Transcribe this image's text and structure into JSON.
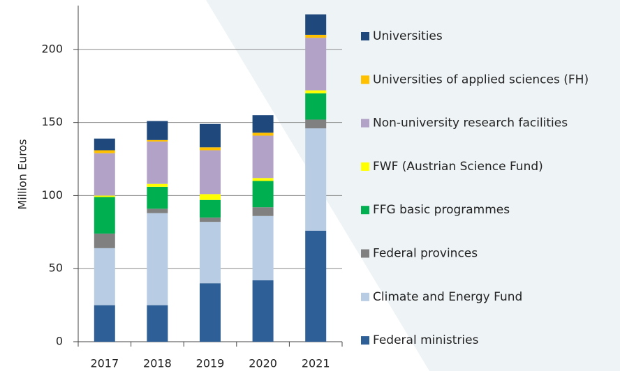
{
  "chart_data": {
    "type": "stacked_bar",
    "ylabel": "Million Euros",
    "categories": [
      "2017",
      "2018",
      "2019",
      "2020",
      "2021"
    ],
    "series": [
      {
        "name": "Federal ministries",
        "color": "#2f5f97",
        "values": [
          25,
          25,
          40,
          42,
          76
        ]
      },
      {
        "name": "Climate and Energy Fund",
        "color": "#b8cce4",
        "values": [
          39,
          63,
          42,
          44,
          70
        ]
      },
      {
        "name": "Federal provinces",
        "color": "#808080",
        "values": [
          10,
          3,
          3,
          6,
          6
        ]
      },
      {
        "name": "FFG basic programmes",
        "color": "#00b050",
        "values": [
          25,
          15,
          12,
          18,
          18
        ]
      },
      {
        "name": "FWF (Austrian Science Fund)",
        "color": "#ffff00",
        "values": [
          1,
          2,
          4,
          2,
          2
        ]
      },
      {
        "name": "Non-university research facilities",
        "color": "#b3a2c7",
        "values": [
          29,
          29,
          30,
          29,
          36
        ]
      },
      {
        "name": "Universities of applied sciences (FH)",
        "color": "#ffc000",
        "values": [
          2,
          1,
          2,
          2,
          2
        ]
      },
      {
        "name": "Universities",
        "color": "#1f497d",
        "values": [
          8,
          13,
          16,
          12,
          14
        ]
      }
    ],
    "ylim": [
      0,
      230
    ],
    "yticks": [
      0,
      50,
      100,
      150,
      200
    ],
    "grid": true
  }
}
